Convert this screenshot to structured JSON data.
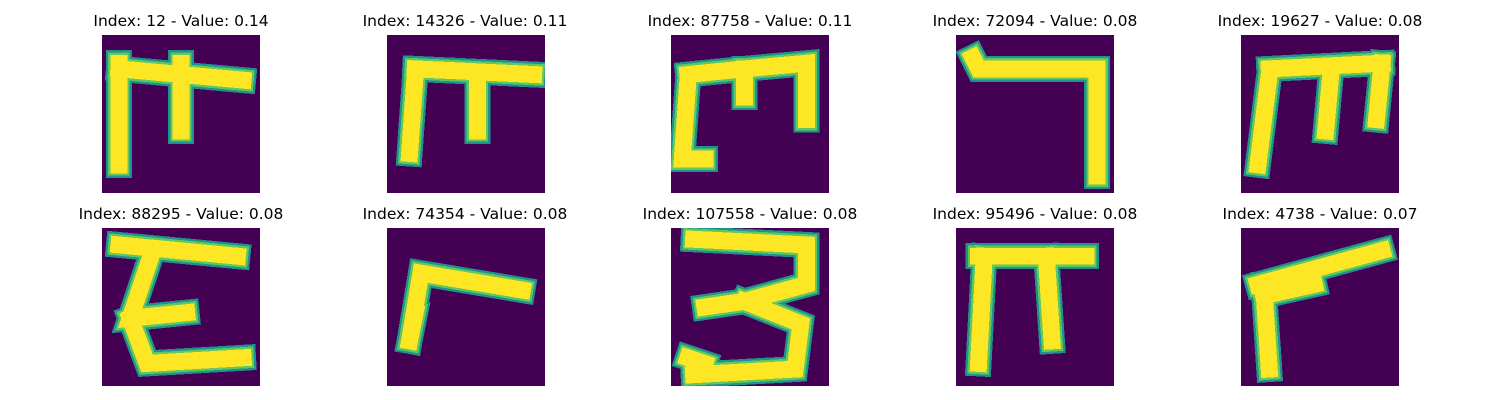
{
  "figure": {
    "colors": {
      "background": "#440154",
      "mid_low": "#30678d",
      "mid": "#21918c",
      "mid_high": "#5ec962",
      "high": "#fde725"
    },
    "colormap": "viridis"
  },
  "chart_data": [
    {
      "type": "heatmap",
      "index": 12,
      "value": 0.14,
      "title": "Index: 12 - Value: 0.14",
      "glyph": "m"
    },
    {
      "type": "heatmap",
      "index": 14326,
      "value": 0.11,
      "title": "Index: 14326 - Value: 0.11",
      "glyph": "pi"
    },
    {
      "type": "heatmap",
      "index": 87758,
      "value": 0.11,
      "title": "Index: 87758 - Value: 0.11",
      "glyph": "m2"
    },
    {
      "type": "heatmap",
      "index": 72094,
      "value": 0.08,
      "title": "Index: 72094 - Value: 0.08",
      "glyph": "seven"
    },
    {
      "type": "heatmap",
      "index": 19627,
      "value": 0.08,
      "title": "Index: 19627 - Value: 0.08",
      "glyph": "m3"
    },
    {
      "type": "heatmap",
      "index": 88295,
      "value": 0.08,
      "title": "Index: 88295 - Value: 0.08",
      "glyph": "epsilon"
    },
    {
      "type": "heatmap",
      "index": 74354,
      "value": 0.08,
      "title": "Index: 74354 - Value: 0.08",
      "glyph": "r"
    },
    {
      "type": "heatmap",
      "index": 107558,
      "value": 0.08,
      "title": "Index: 107558 - Value: 0.08",
      "glyph": "three"
    },
    {
      "type": "heatmap",
      "index": 95496,
      "value": 0.08,
      "title": "Index: 95496 - Value: 0.08",
      "glyph": "pi2"
    },
    {
      "type": "heatmap",
      "index": 4738,
      "value": 0.07,
      "title": "Index: 4738 - Value: 0.07",
      "glyph": "gamma"
    }
  ]
}
